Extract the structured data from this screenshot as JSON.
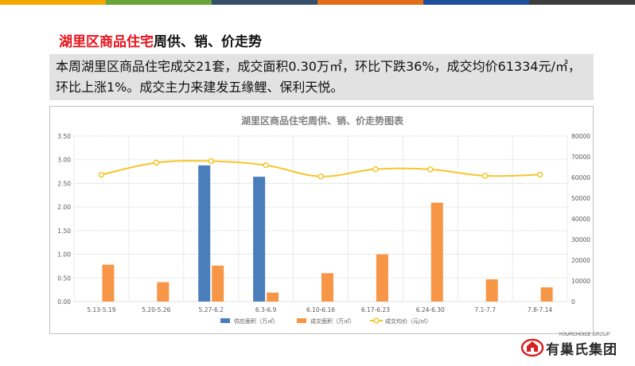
{
  "header": {
    "topbar_colors": [
      "#f5a800",
      "#6aa338",
      "#364f6b",
      "#e26e1a",
      "#1e4f9c",
      "#3d3d3d"
    ]
  },
  "title": {
    "red_part": "湖里区商品住宅",
    "black_part": "周供、销、价走势"
  },
  "summary": {
    "text": "本周湖里区商品住宅成交21套，成交面积0.30万㎡，环比下跌36%，成交均价61334元/㎡，环比上涨1%。成交主力来建发五缘鲤、保利天悦。"
  },
  "logo": {
    "en": "YOURCHOICE GROUP",
    "cn": "有巢氏集团"
  },
  "chart_data": {
    "type": "bar",
    "title": "湖里区商品住宅周供、销、价走势图表",
    "categories": [
      "5.13-5.19",
      "5.20-5.26",
      "5.27-6.2",
      "6.3-6.9",
      "6.10-6.16",
      "6.17-6.23",
      "6.24-6.30",
      "7.1-7.7",
      "7.8-7.14"
    ],
    "y_left": {
      "min": 0,
      "max": 3.5,
      "ticks": [
        "0.00",
        "0.50",
        "1.00",
        "1.50",
        "2.00",
        "2.50",
        "3.00",
        "3.50"
      ]
    },
    "y_right": {
      "min": 0,
      "max": 80000,
      "ticks": [
        "0",
        "10000",
        "20000",
        "30000",
        "40000",
        "50000",
        "60000",
        "70000",
        "80000"
      ]
    },
    "grid": true,
    "legend_position": "bottom",
    "series": [
      {
        "name": "供应面积（万㎡）",
        "type": "bar",
        "axis": "left",
        "color": "#4a7ebb",
        "values": [
          0,
          0,
          2.88,
          2.64,
          0,
          0,
          0,
          0,
          0
        ]
      },
      {
        "name": "成交面积（万㎡）",
        "type": "bar",
        "axis": "left",
        "color": "#f79646",
        "values": [
          0.78,
          0.41,
          0.76,
          0.19,
          0.6,
          1.0,
          2.09,
          0.47,
          0.3
        ]
      },
      {
        "name": "成交均价（元/㎡）",
        "type": "line",
        "axis": "right",
        "color": "#f6c62a",
        "values": [
          61300,
          67100,
          67900,
          65900,
          60500,
          64000,
          63900,
          60800,
          61334
        ]
      }
    ]
  }
}
